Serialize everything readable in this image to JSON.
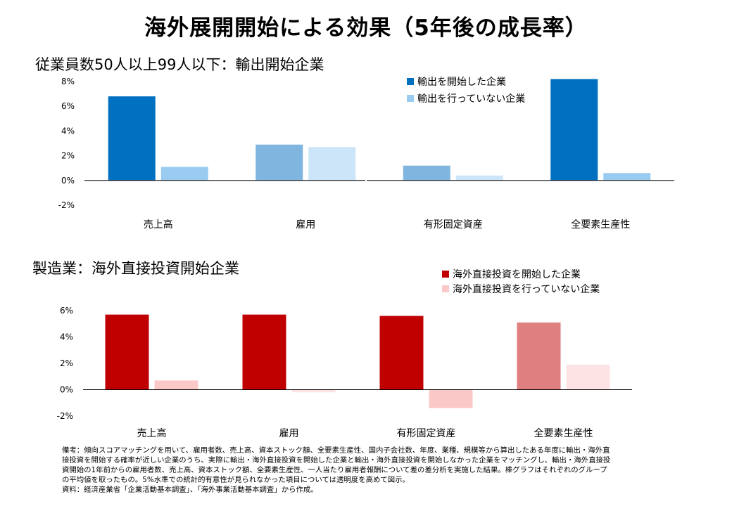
{
  "title": "海外展開開始による効果（5年後の成長率）",
  "chart_data": [
    {
      "type": "bar",
      "title": "従業員数50人以上99人以下：輸出開始企業",
      "categories": [
        "売上高",
        "雇用",
        "有形固定資産",
        "全要素生産性"
      ],
      "yticks": [
        "8%",
        "6%",
        "4%",
        "2%",
        "0%",
        "-2%"
      ],
      "ylim": [
        -2,
        8
      ],
      "legend_position": "top-right",
      "series": [
        {
          "name": "輸出を開始した企業",
          "values": [
            6.8,
            2.9,
            1.2,
            8.2
          ],
          "legend_color": "#0070c0",
          "colors": [
            "#0070c0",
            "#7fb5df",
            "#7fb5df",
            "#0070c0"
          ]
        },
        {
          "name": "輸出を行っていない企業",
          "values": [
            1.1,
            2.7,
            0.4,
            0.6
          ],
          "legend_color": "#99ccf0",
          "colors": [
            "#99ccf0",
            "#cce5f8",
            "#cce5f8",
            "#99ccf0"
          ]
        }
      ]
    },
    {
      "type": "bar",
      "title": "製造業：海外直接投資開始企業",
      "categories": [
        "売上高",
        "雇用",
        "有形固定資産",
        "全要素生産性"
      ],
      "yticks": [
        "6%",
        "4%",
        "2%",
        "0%",
        "-2%"
      ],
      "ylim": [
        -2,
        6
      ],
      "legend_position": "top-right",
      "series": [
        {
          "name": "海外直接投資を開始した企業",
          "values": [
            5.7,
            5.7,
            5.6,
            5.1
          ],
          "legend_color": "#c00000",
          "colors": [
            "#c00000",
            "#c00000",
            "#c00000",
            "#df7f7f"
          ]
        },
        {
          "name": "海外直接投資を行っていない企業",
          "values": [
            0.7,
            -0.2,
            -1.4,
            1.9
          ],
          "legend_color": "#fbc8c8",
          "colors": [
            "#fbc8c8",
            "#fde3e3",
            "#fbc8c8",
            "#fde3e3"
          ]
        }
      ]
    }
  ],
  "note": "備考：傾向スコアマッチングを用いて、雇用者数、売上高、資本ストック額、全要素生産性、国内子会社数、年度、業種、規模等から算出したある年度に輸出・海外直\n接投資を開始する確率が近しい企業のうち、実際に輸出・海外直接投資を開始した企業と輸出・海外直接投資を開始しなかった企業をマッチングし、輸出・海外直接投\n資開始の1年前からの雇用者数、売上高、資本ストック額、全要素生産性、一人当たり雇用者報酬について差の差分析を実施した結果。棒グラフはそれぞれのグループ\nの平均値を取ったもの。5%水準での統計的有意性が見られなかった項目については透明度を高めて図示。\n資料：経済産業省「企業活動基本調査」、「海外事業活動基本調査」から作成。"
}
